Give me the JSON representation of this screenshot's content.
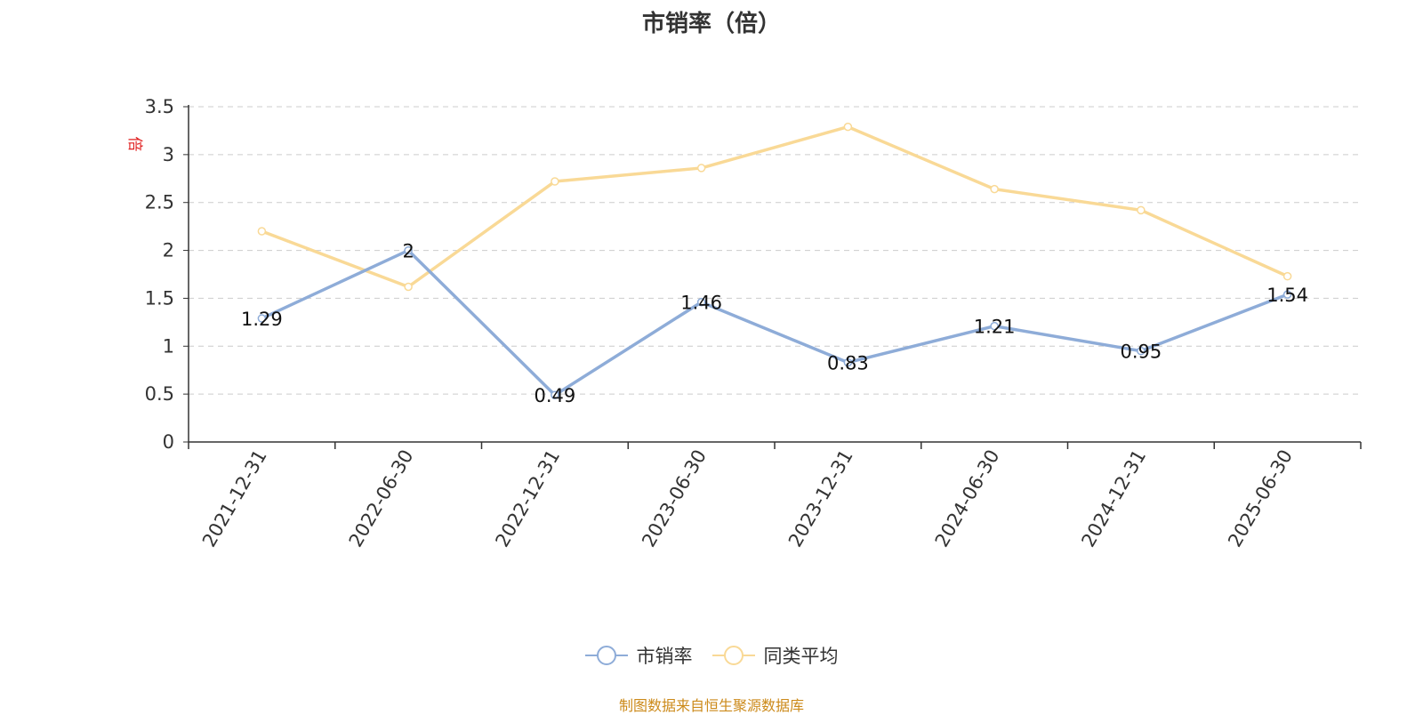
{
  "chart_data": {
    "type": "line",
    "title": "市销率（倍）",
    "ylabel": "倍",
    "xlabel": "",
    "ylim": [
      0,
      3.5
    ],
    "yticks": [
      "0",
      "0.5",
      "1",
      "1.5",
      "2",
      "2.5",
      "3",
      "3.5"
    ],
    "grid": true,
    "categories": [
      "2021-12-31",
      "2022-06-30",
      "2022-12-31",
      "2023-06-30",
      "2023-12-31",
      "2024-06-30",
      "2024-12-31",
      "2025-06-30"
    ],
    "series": [
      {
        "name": "市销率",
        "color": "#8eacd8",
        "values": [
          1.29,
          2,
          0.49,
          1.46,
          0.83,
          1.21,
          0.95,
          1.54
        ],
        "labels": [
          "1.29",
          "2",
          "0.49",
          "1.46",
          "0.83",
          "1.21",
          "0.95",
          "1.54"
        ]
      },
      {
        "name": "同类平均",
        "color": "#f9d996",
        "values": [
          2.2,
          1.62,
          2.72,
          2.86,
          3.29,
          2.64,
          2.42,
          1.73
        ]
      }
    ],
    "legend_position": "bottom",
    "source": "制图数据来自恒生聚源数据库"
  }
}
